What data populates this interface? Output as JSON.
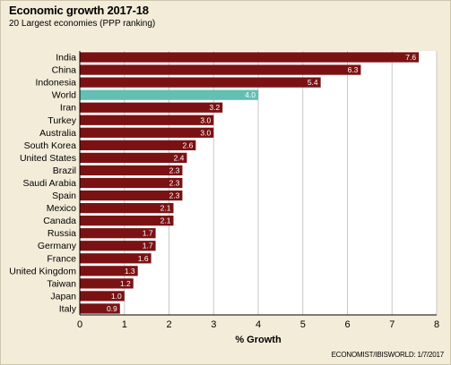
{
  "chart_data": {
    "type": "bar",
    "orientation": "horizontal",
    "title": "Economic growth 2017-18",
    "subtitle": "20 Largest economies (PPP ranking)",
    "xlabel": "% Growth",
    "ylabel": "",
    "xlim": [
      0,
      8
    ],
    "xticks": [
      0,
      1,
      2,
      3,
      4,
      5,
      6,
      7,
      8
    ],
    "grid": true,
    "source": "ECONOMIST/IBISWORLD: 1/7/2017",
    "categories": [
      "India",
      "China",
      "Indonesia",
      "World",
      "Iran",
      "Turkey",
      "Australia",
      "South Korea",
      "United States",
      "Brazil",
      "Saudi Arabia",
      "Spain",
      "Mexico",
      "Canada",
      "Russia",
      "Germany",
      "France",
      "United Kingdom",
      "Taiwan",
      "Japan",
      "Italy"
    ],
    "values": [
      7.6,
      6.3,
      5.4,
      4.0,
      3.2,
      3.0,
      3.0,
      2.6,
      2.4,
      2.3,
      2.3,
      2.3,
      2.1,
      2.1,
      1.7,
      1.7,
      1.6,
      1.3,
      1.2,
      1.0,
      0.9
    ],
    "value_labels": [
      "7.6",
      "6.3",
      "5.4",
      "4.0",
      "3.2",
      "3.0",
      "3.0",
      "2.6",
      "2.4",
      "2.3",
      "2.3",
      "2.3",
      "2.1",
      "2.1",
      "1.7",
      "1.7",
      "1.6",
      "1.3",
      "1.2",
      "1.0",
      "0.9"
    ],
    "highlight_category": "World",
    "colors": {
      "bar": "#7a1214",
      "highlight": "#63bfb3",
      "background": "#f3ecd9",
      "plot_background": "#ffffff",
      "grid": "#c8c8c8"
    }
  }
}
